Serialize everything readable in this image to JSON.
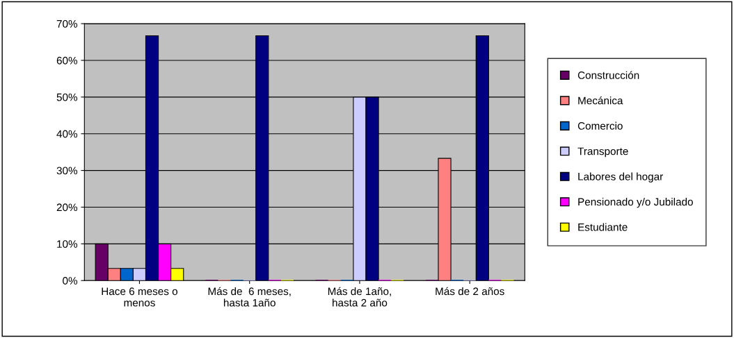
{
  "chart_data": {
    "type": "bar",
    "categories": [
      "Hace 6 meses o\nmenos",
      "Más de  6 meses,\nhasta 1año",
      "Más de 1año,\nhasta 2 año",
      "Más de 2 años"
    ],
    "series": [
      {
        "name": "Construcción",
        "color": "#660066",
        "values": [
          10,
          0,
          0,
          0
        ]
      },
      {
        "name": "Mecánica",
        "color": "#ff8080",
        "values": [
          3.3,
          0,
          0,
          33.3
        ]
      },
      {
        "name": "Comercio",
        "color": "#0066cc",
        "values": [
          3.3,
          0,
          0,
          0
        ]
      },
      {
        "name": "Transporte",
        "color": "#ccccff",
        "values": [
          3.3,
          0,
          50,
          0
        ]
      },
      {
        "name": "Labores del hogar",
        "color": "#000080",
        "values": [
          66.7,
          66.7,
          50,
          66.7
        ]
      },
      {
        "name": "Pensionado y/o Jubilado",
        "color": "#ff00ff",
        "values": [
          10,
          0,
          0,
          0
        ]
      },
      {
        "name": "Estudiante",
        "color": "#ffff00",
        "values": [
          3.3,
          0,
          0,
          0
        ]
      }
    ],
    "ylim": [
      0,
      70
    ],
    "yticks": [
      {
        "value": 0,
        "label": "0%"
      },
      {
        "value": 10,
        "label": "10%"
      },
      {
        "value": 20,
        "label": "20%"
      },
      {
        "value": 30,
        "label": "30%"
      },
      {
        "value": 40,
        "label": "40%"
      },
      {
        "value": 50,
        "label": "50%"
      },
      {
        "value": 60,
        "label": "60%"
      },
      {
        "value": 70,
        "label": "70%"
      }
    ],
    "grid": "y",
    "legend": "right"
  }
}
